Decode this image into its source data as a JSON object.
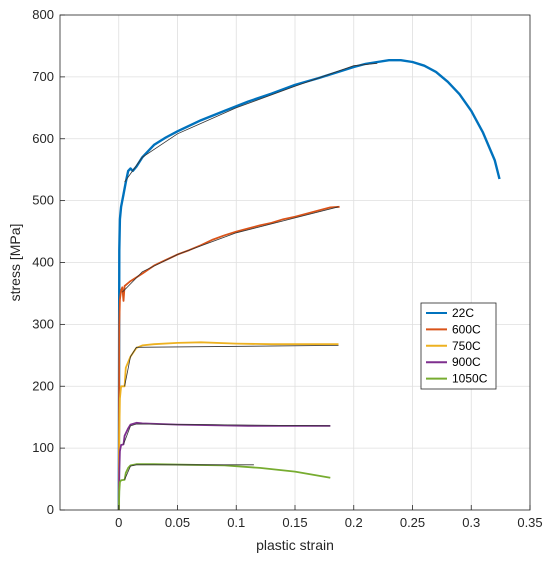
{
  "chart_data": {
    "type": "line",
    "title": "",
    "xlabel": "plastic strain",
    "ylabel": "stress [MPa]",
    "xlim": [
      -0.05,
      0.35
    ],
    "ylim": [
      0,
      800
    ],
    "x_ticks": [
      0,
      0.05,
      0.1,
      0.15,
      0.2,
      0.25,
      0.3,
      0.35
    ],
    "x_tick_labels": [
      "0",
      "0.05",
      "0.1",
      "0.15",
      "0.2",
      "0.25",
      "0.3",
      "0.35"
    ],
    "y_ticks": [
      0,
      100,
      200,
      300,
      400,
      500,
      600,
      700,
      800
    ],
    "y_tick_labels": [
      "0",
      "100",
      "200",
      "300",
      "400",
      "500",
      "600",
      "700",
      "800"
    ],
    "grid": true,
    "legend_position": "right",
    "series": [
      {
        "name": "22C",
        "color": "#0072BD",
        "points": [
          [
            0,
            0
          ],
          [
            0.0005,
            420
          ],
          [
            0.001,
            470
          ],
          [
            0.002,
            490
          ],
          [
            0.004,
            510
          ],
          [
            0.006,
            530
          ],
          [
            0.008,
            548
          ],
          [
            0.01,
            552
          ],
          [
            0.012,
            548
          ],
          [
            0.015,
            555
          ],
          [
            0.02,
            570
          ],
          [
            0.03,
            590
          ],
          [
            0.04,
            602
          ],
          [
            0.05,
            612
          ],
          [
            0.07,
            630
          ],
          [
            0.09,
            645
          ],
          [
            0.11,
            660
          ],
          [
            0.13,
            673
          ],
          [
            0.15,
            687
          ],
          [
            0.17,
            698
          ],
          [
            0.19,
            710
          ],
          [
            0.2,
            716
          ],
          [
            0.21,
            721
          ],
          [
            0.22,
            724
          ],
          [
            0.23,
            727
          ],
          [
            0.24,
            727
          ],
          [
            0.25,
            724
          ],
          [
            0.26,
            718
          ],
          [
            0.27,
            708
          ],
          [
            0.28,
            692
          ],
          [
            0.29,
            672
          ],
          [
            0.3,
            645
          ],
          [
            0.31,
            610
          ],
          [
            0.32,
            565
          ],
          [
            0.324,
            535
          ]
        ]
      },
      {
        "name": "600C",
        "color": "#D95319",
        "points": [
          [
            0,
            0
          ],
          [
            0.0005,
            300
          ],
          [
            0.001,
            340
          ],
          [
            0.002,
            355
          ],
          [
            0.003,
            360
          ],
          [
            0.004,
            338
          ],
          [
            0.005,
            362
          ],
          [
            0.01,
            370
          ],
          [
            0.02,
            382
          ],
          [
            0.03,
            395
          ],
          [
            0.04,
            404
          ],
          [
            0.05,
            413
          ],
          [
            0.06,
            420
          ],
          [
            0.07,
            428
          ],
          [
            0.08,
            437
          ],
          [
            0.09,
            444
          ],
          [
            0.1,
            450
          ],
          [
            0.11,
            455
          ],
          [
            0.12,
            460
          ],
          [
            0.13,
            464
          ],
          [
            0.14,
            470
          ],
          [
            0.15,
            474
          ],
          [
            0.16,
            479
          ],
          [
            0.17,
            484
          ],
          [
            0.18,
            489
          ],
          [
            0.188,
            490
          ]
        ]
      },
      {
        "name": "750C",
        "color": "#EDB120",
        "points": [
          [
            0,
            0
          ],
          [
            0.0005,
            120
          ],
          [
            0.001,
            180
          ],
          [
            0.002,
            200
          ],
          [
            0.005,
            200
          ],
          [
            0.006,
            230
          ],
          [
            0.01,
            248
          ],
          [
            0.015,
            262
          ],
          [
            0.02,
            266
          ],
          [
            0.03,
            268
          ],
          [
            0.05,
            270
          ],
          [
            0.07,
            271
          ],
          [
            0.1,
            269
          ],
          [
            0.13,
            268
          ],
          [
            0.16,
            268
          ],
          [
            0.187,
            268
          ]
        ]
      },
      {
        "name": "900C",
        "color": "#7E2F8E",
        "points": [
          [
            0,
            0
          ],
          [
            0.0005,
            60
          ],
          [
            0.001,
            95
          ],
          [
            0.002,
            105
          ],
          [
            0.004,
            106
          ],
          [
            0.005,
            120
          ],
          [
            0.008,
            132
          ],
          [
            0.01,
            138
          ],
          [
            0.015,
            141
          ],
          [
            0.02,
            140
          ],
          [
            0.05,
            138
          ],
          [
            0.08,
            137
          ],
          [
            0.11,
            136
          ],
          [
            0.14,
            136
          ],
          [
            0.18,
            136
          ]
        ]
      },
      {
        "name": "1050C",
        "color": "#77AC30",
        "points": [
          [
            0,
            0
          ],
          [
            0.0005,
            30
          ],
          [
            0.001,
            45
          ],
          [
            0.002,
            48
          ],
          [
            0.005,
            49
          ],
          [
            0.006,
            60
          ],
          [
            0.008,
            68
          ],
          [
            0.01,
            72
          ],
          [
            0.015,
            74
          ],
          [
            0.03,
            74
          ],
          [
            0.06,
            73
          ],
          [
            0.09,
            72
          ],
          [
            0.12,
            68
          ],
          [
            0.15,
            62
          ],
          [
            0.18,
            52
          ]
        ]
      }
    ],
    "fit_lines": [
      {
        "color": "#333333",
        "points": [
          [
            0.005,
            530
          ],
          [
            0.02,
            570
          ],
          [
            0.05,
            608
          ],
          [
            0.1,
            650
          ],
          [
            0.15,
            685
          ],
          [
            0.2,
            718
          ],
          [
            0.22,
            722
          ]
        ]
      },
      {
        "color": "#333333",
        "points": [
          [
            0.003,
            352
          ],
          [
            0.02,
            385
          ],
          [
            0.05,
            413
          ],
          [
            0.1,
            448
          ],
          [
            0.15,
            472
          ],
          [
            0.187,
            490
          ]
        ]
      },
      {
        "color": "#333333",
        "points": [
          [
            0.005,
            200
          ],
          [
            0.01,
            248
          ],
          [
            0.015,
            263
          ],
          [
            0.187,
            266
          ]
        ]
      },
      {
        "color": "#333333",
        "points": [
          [
            0.004,
            106
          ],
          [
            0.01,
            136
          ],
          [
            0.015,
            139
          ],
          [
            0.18,
            136
          ]
        ]
      },
      {
        "color": "#333333",
        "points": [
          [
            0.005,
            49
          ],
          [
            0.01,
            71
          ],
          [
            0.015,
            73
          ],
          [
            0.115,
            73
          ]
        ]
      }
    ]
  }
}
